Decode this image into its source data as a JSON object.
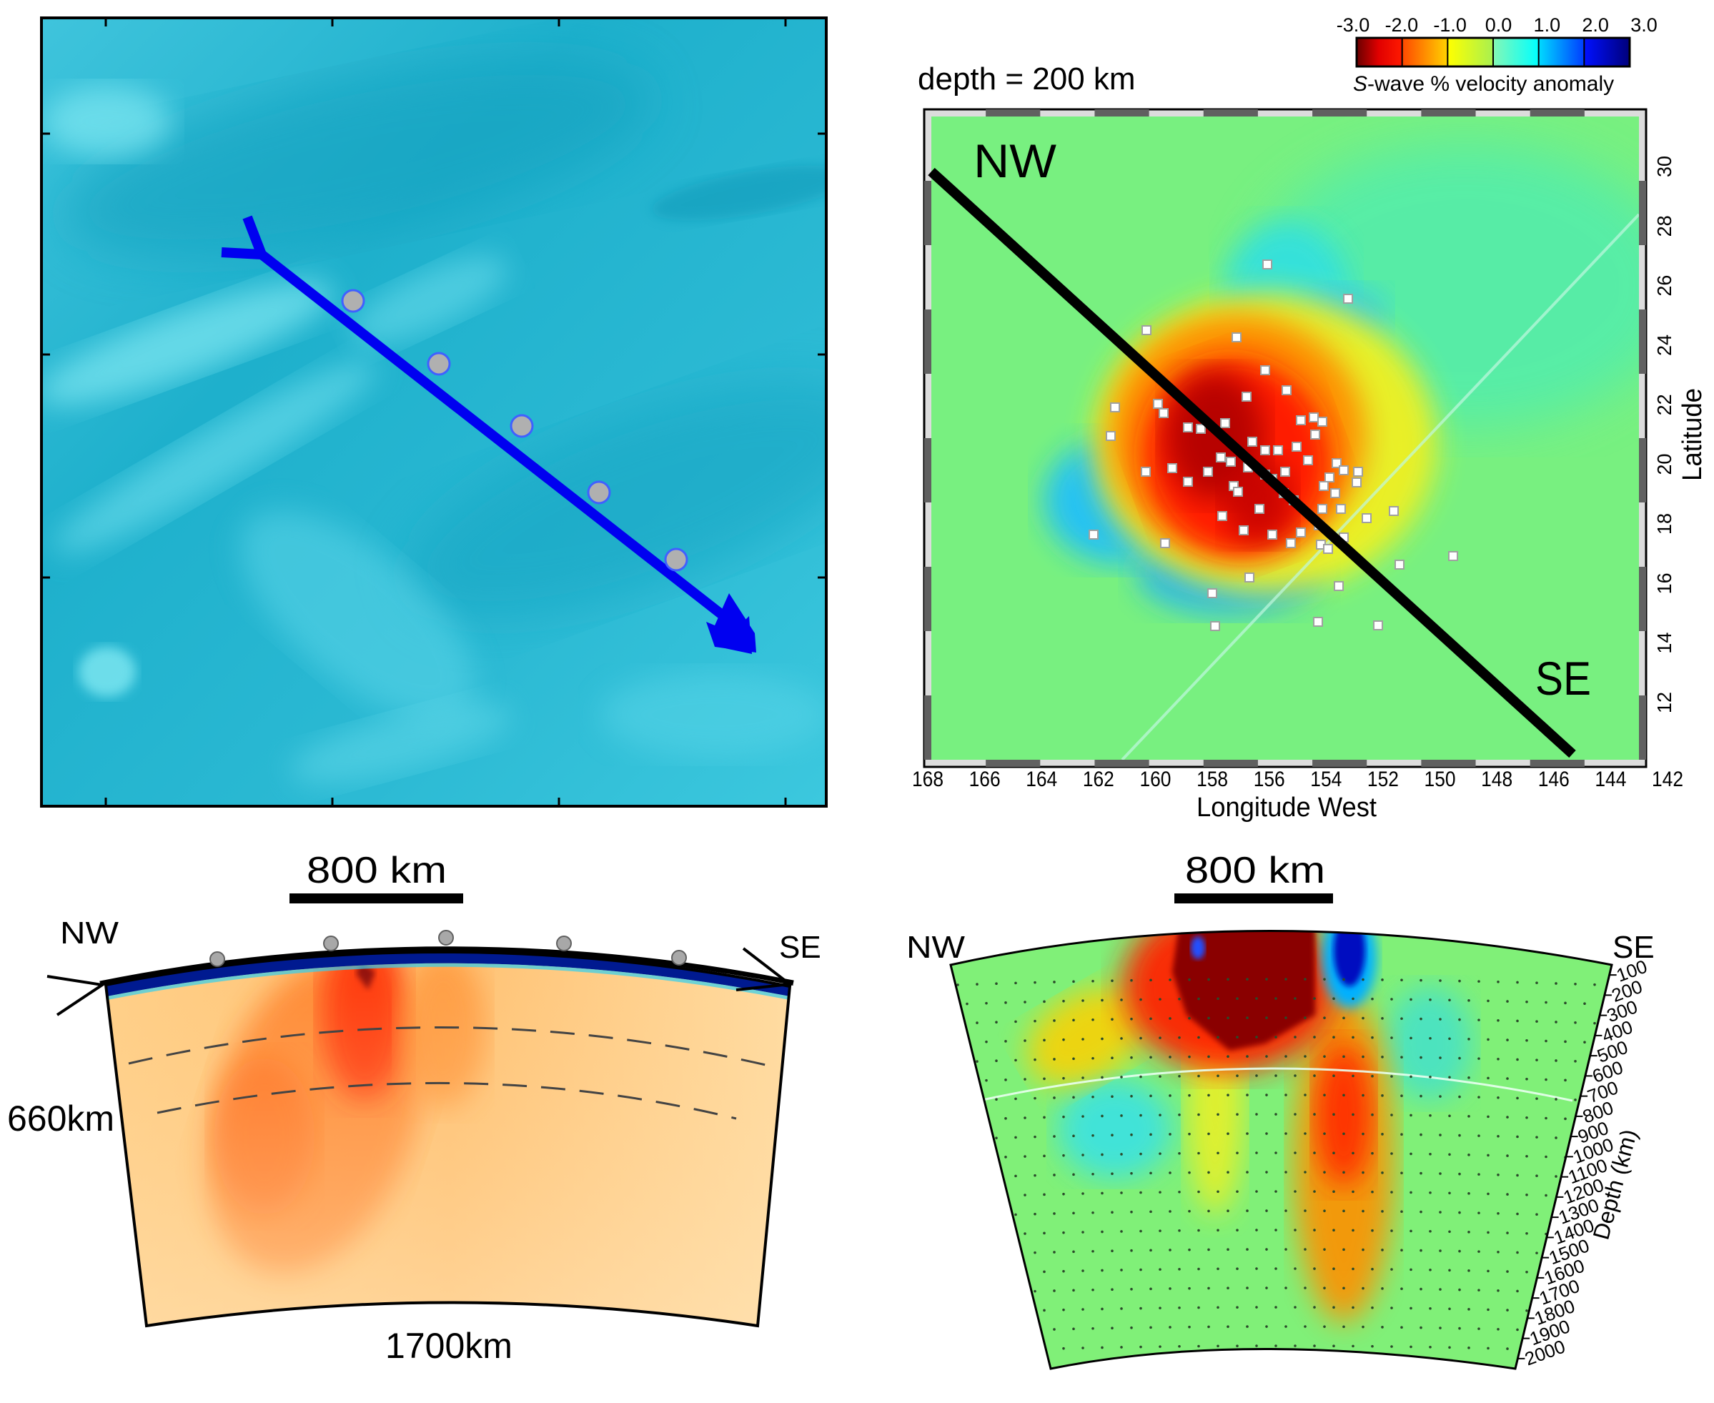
{
  "panel_a": {
    "name": "bathymetry-map",
    "profile_stations": 5,
    "arrow_direction": "NW to SE"
  },
  "panel_b": {
    "depth_label": "depth = 200 km",
    "corner_labels": {
      "nw": "NW",
      "se": "SE"
    },
    "colorbar": {
      "ticks": [
        "-3.0",
        "-2.0",
        "-1.0",
        "0.0",
        "1.0",
        "2.0",
        "3.0"
      ],
      "title_italic": "S",
      "title_rest": "-wave % velocity anomaly",
      "colors": [
        "#7a0000",
        "#ff0000",
        "#ff6a00",
        "#ffd800",
        "#ffff00",
        "#a8f060",
        "#80ffb0",
        "#00ffff",
        "#00c8ff",
        "#0050ff",
        "#0000ff",
        "#00007a"
      ]
    },
    "x_axis": {
      "label": "Longitude West",
      "ticks": [
        "168",
        "166",
        "164",
        "162",
        "160",
        "158",
        "156",
        "154",
        "152",
        "150",
        "148",
        "146",
        "144",
        "142"
      ]
    },
    "y_axis": {
      "label": "Latitude",
      "ticks": [
        "12",
        "14",
        "16",
        "18",
        "20",
        "22",
        "24",
        "26",
        "28",
        "30"
      ]
    }
  },
  "panel_c": {
    "scale_label": "800 km",
    "nw_label": "NW",
    "se_label": "SE",
    "depth_label": "660km",
    "bottom_label": "1700km"
  },
  "panel_d": {
    "scale_label": "800 km",
    "nw_label": "NW",
    "se_label": "SE",
    "depth_axis_label": "Depth (km)",
    "depth_ticks": [
      "100",
      "200",
      "300",
      "400",
      "500",
      "600",
      "700",
      "800",
      "900",
      "1000",
      "1100",
      "1200",
      "1300",
      "1400",
      "1500",
      "1600",
      "1700",
      "1800",
      "1900",
      "2000"
    ]
  }
}
